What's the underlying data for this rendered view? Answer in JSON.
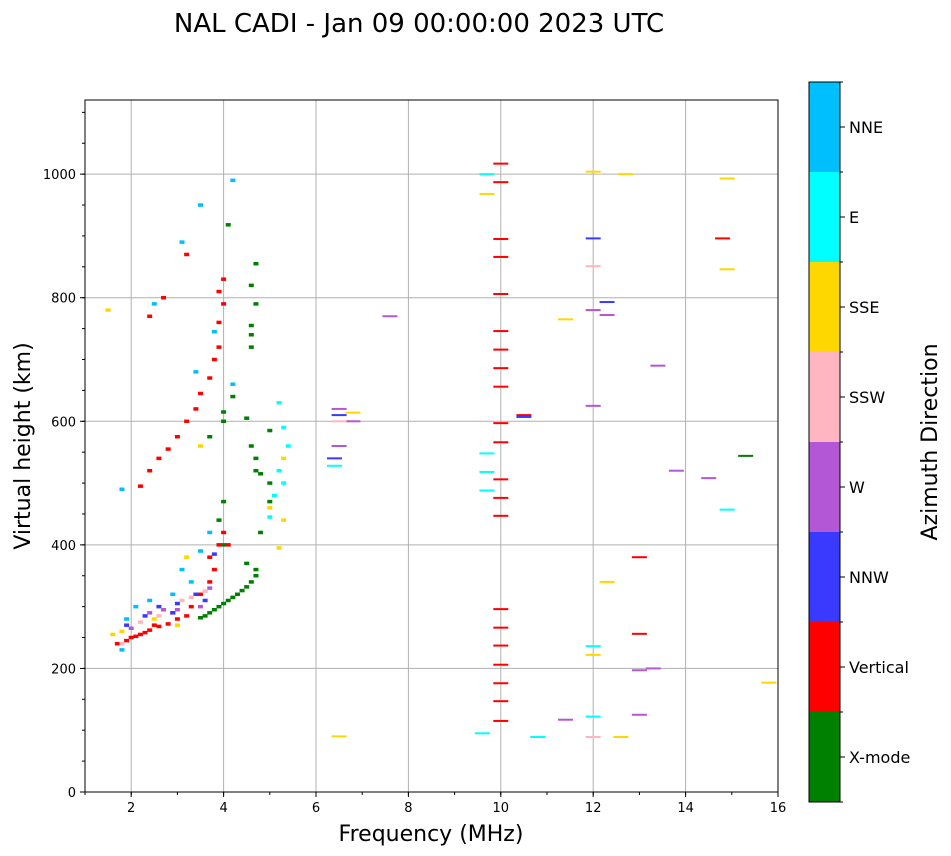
{
  "chart_data": {
    "type": "scatter",
    "title": "NAL CADI - Jan 09 00:00:00 2023 UTC",
    "xlabel": "Frequency (MHz)",
    "ylabel": "Virtual height (km)",
    "xlim": [
      1,
      16
    ],
    "ylim": [
      0,
      1120
    ],
    "xticks": [
      2,
      4,
      6,
      8,
      10,
      12,
      14,
      16
    ],
    "yticks": [
      0,
      200,
      400,
      600,
      800,
      1000
    ],
    "grid": true,
    "colorbar": {
      "label": "Azimuth Direction",
      "categories": [
        "X-mode",
        "Vertical",
        "NNW",
        "W",
        "SSW",
        "SSE",
        "E",
        "NNE"
      ],
      "colors": [
        "#008000",
        "#ff0000",
        "#3a3aff",
        "#b457d6",
        "#ffb6c1",
        "#ffd700",
        "#00ffff",
        "#00bfff"
      ]
    },
    "series": [
      {
        "name": "X-mode",
        "points": [
          [
            3.5,
            282
          ],
          [
            3.6,
            285
          ],
          [
            3.7,
            290
          ],
          [
            3.8,
            295
          ],
          [
            3.9,
            300
          ],
          [
            4.0,
            305
          ],
          [
            4.1,
            310
          ],
          [
            4.2,
            315
          ],
          [
            4.3,
            320
          ],
          [
            4.4,
            326
          ],
          [
            4.5,
            332
          ],
          [
            4.6,
            340
          ],
          [
            4.7,
            350
          ],
          [
            4.7,
            360
          ],
          [
            4.5,
            370
          ],
          [
            4.8,
            420
          ],
          [
            4.0,
            400
          ],
          [
            3.9,
            440
          ],
          [
            4.0,
            470
          ],
          [
            5.0,
            470
          ],
          [
            5.0,
            500
          ],
          [
            4.7,
            520
          ],
          [
            4.7,
            540
          ],
          [
            4.6,
            560
          ],
          [
            3.7,
            575
          ],
          [
            4.0,
            600
          ],
          [
            4.0,
            615
          ],
          [
            4.2,
            640
          ],
          [
            4.6,
            720
          ],
          [
            4.6,
            740
          ],
          [
            4.6,
            755
          ],
          [
            4.7,
            790
          ],
          [
            4.6,
            820
          ],
          [
            4.7,
            855
          ],
          [
            4.1,
            918
          ],
          [
            5.0,
            585
          ],
          [
            15.3,
            544
          ],
          [
            4.5,
            605
          ],
          [
            4.8,
            515
          ]
        ]
      },
      {
        "name": "Vertical",
        "points": [
          [
            2.0,
            250
          ],
          [
            2.1,
            252
          ],
          [
            2.2,
            255
          ],
          [
            2.3,
            258
          ],
          [
            2.4,
            262
          ],
          [
            2.6,
            268
          ],
          [
            2.8,
            272
          ],
          [
            3.0,
            280
          ],
          [
            3.2,
            285
          ],
          [
            1.9,
            245
          ],
          [
            1.7,
            240
          ],
          [
            2.5,
            270
          ],
          [
            2.9,
            290
          ],
          [
            3.3,
            300
          ],
          [
            3.5,
            320
          ],
          [
            3.7,
            340
          ],
          [
            3.8,
            360
          ],
          [
            3.7,
            380
          ],
          [
            3.9,
            400
          ],
          [
            4.0,
            420
          ],
          [
            4.1,
            400
          ],
          [
            2.2,
            495
          ],
          [
            2.4,
            520
          ],
          [
            2.6,
            540
          ],
          [
            2.8,
            555
          ],
          [
            3.0,
            575
          ],
          [
            3.2,
            600
          ],
          [
            3.4,
            620
          ],
          [
            3.5,
            645
          ],
          [
            3.7,
            670
          ],
          [
            3.8,
            700
          ],
          [
            3.9,
            720
          ],
          [
            3.9,
            760
          ],
          [
            4.0,
            790
          ],
          [
            3.9,
            810
          ],
          [
            4.0,
            830
          ],
          [
            3.2,
            870
          ],
          [
            2.4,
            770
          ],
          [
            2.7,
            800
          ],
          [
            10.0,
            115
          ],
          [
            10.0,
            147
          ],
          [
            10.0,
            176
          ],
          [
            10.0,
            206
          ],
          [
            10.0,
            237
          ],
          [
            10.0,
            266
          ],
          [
            10.0,
            296
          ],
          [
            10.0,
            447
          ],
          [
            10.0,
            476
          ],
          [
            10.0,
            506
          ],
          [
            10.0,
            566
          ],
          [
            10.0,
            597
          ],
          [
            10.0,
            656
          ],
          [
            10.0,
            686
          ],
          [
            10.0,
            716
          ],
          [
            10.0,
            746
          ],
          [
            10.0,
            806
          ],
          [
            10.0,
            866
          ],
          [
            10.0,
            895
          ],
          [
            10.0,
            987
          ],
          [
            10.0,
            1017
          ],
          [
            10.5,
            610
          ],
          [
            13.0,
            380
          ],
          [
            13.0,
            256
          ],
          [
            14.8,
            896
          ]
        ]
      },
      {
        "name": "NNW",
        "points": [
          [
            1.9,
            270
          ],
          [
            2.3,
            285
          ],
          [
            2.6,
            300
          ],
          [
            2.9,
            290
          ],
          [
            3.0,
            305
          ],
          [
            3.4,
            320
          ],
          [
            3.6,
            310
          ],
          [
            3.8,
            385
          ],
          [
            6.5,
            610
          ],
          [
            6.4,
            540
          ],
          [
            12.0,
            896
          ],
          [
            12.3,
            793
          ],
          [
            10.5,
            607
          ]
        ]
      },
      {
        "name": "W",
        "points": [
          [
            2.0,
            265
          ],
          [
            2.4,
            290
          ],
          [
            2.7,
            295
          ],
          [
            3.0,
            295
          ],
          [
            3.5,
            300
          ],
          [
            3.7,
            330
          ],
          [
            6.5,
            620
          ],
          [
            6.5,
            560
          ],
          [
            6.8,
            600
          ],
          [
            7.6,
            770
          ],
          [
            11.4,
            117
          ],
          [
            12.0,
            780
          ],
          [
            12.3,
            772
          ],
          [
            12.0,
            625
          ],
          [
            13.0,
            125
          ],
          [
            13.0,
            197
          ],
          [
            13.3,
            200
          ],
          [
            13.4,
            690
          ],
          [
            13.8,
            520
          ],
          [
            14.5,
            508
          ]
        ]
      },
      {
        "name": "SSW",
        "points": [
          [
            1.8,
            240
          ],
          [
            2.2,
            275
          ],
          [
            2.6,
            285
          ],
          [
            3.1,
            310
          ],
          [
            3.3,
            315
          ],
          [
            3.6,
            325
          ],
          [
            12.0,
            89
          ],
          [
            12.0,
            851
          ],
          [
            6.5,
            600
          ]
        ]
      },
      {
        "name": "SSE",
        "points": [
          [
            1.5,
            780
          ],
          [
            1.6,
            255
          ],
          [
            1.8,
            260
          ],
          [
            2.5,
            280
          ],
          [
            3.0,
            270
          ],
          [
            3.2,
            380
          ],
          [
            3.5,
            560
          ],
          [
            5.0,
            460
          ],
          [
            5.2,
            395
          ],
          [
            5.3,
            440
          ],
          [
            5.3,
            540
          ],
          [
            6.5,
            90
          ],
          [
            6.8,
            614
          ],
          [
            9.7,
            968
          ],
          [
            11.4,
            765
          ],
          [
            12.0,
            222
          ],
          [
            12.0,
            1004
          ],
          [
            12.3,
            340
          ],
          [
            12.6,
            89
          ],
          [
            12.7,
            1000
          ],
          [
            14.9,
            846
          ],
          [
            14.9,
            993
          ],
          [
            15.8,
            177
          ]
        ]
      },
      {
        "name": "E",
        "points": [
          [
            5.0,
            445
          ],
          [
            5.1,
            480
          ],
          [
            5.3,
            500
          ],
          [
            5.2,
            520
          ],
          [
            5.4,
            560
          ],
          [
            5.3,
            590
          ],
          [
            5.2,
            630
          ],
          [
            6.4,
            528
          ],
          [
            9.6,
            95
          ],
          [
            9.7,
            488
          ],
          [
            9.7,
            518
          ],
          [
            9.7,
            548
          ],
          [
            9.7,
            1000
          ],
          [
            10.8,
            89
          ],
          [
            12.0,
            122
          ],
          [
            12.0,
            236
          ],
          [
            14.9,
            457
          ]
        ]
      },
      {
        "name": "NNE",
        "points": [
          [
            1.8,
            230
          ],
          [
            1.9,
            280
          ],
          [
            2.1,
            300
          ],
          [
            2.4,
            310
          ],
          [
            2.9,
            320
          ],
          [
            3.1,
            360
          ],
          [
            3.3,
            340
          ],
          [
            3.5,
            390
          ],
          [
            3.7,
            420
          ],
          [
            1.8,
            490
          ],
          [
            2.5,
            790
          ],
          [
            3.1,
            890
          ],
          [
            3.5,
            950
          ],
          [
            4.2,
            990
          ],
          [
            4.2,
            660
          ],
          [
            3.4,
            680
          ],
          [
            3.8,
            745
          ]
        ]
      }
    ]
  }
}
